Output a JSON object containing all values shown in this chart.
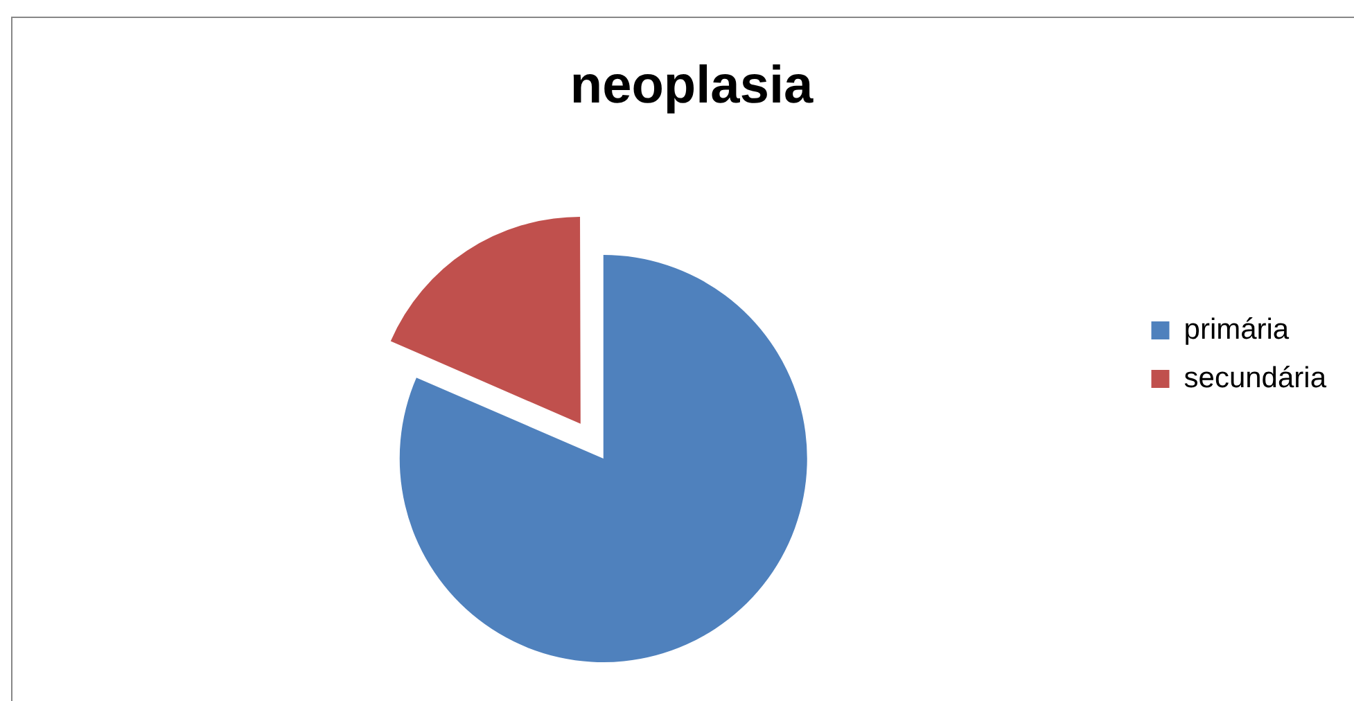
{
  "chart_data": {
    "type": "pie",
    "title": "neoplasia",
    "categories": [
      "primária",
      "secundária"
    ],
    "values": [
      81.5,
      18.5
    ],
    "colors": [
      "#4f81bd",
      "#c0504d"
    ],
    "legend": "right"
  }
}
